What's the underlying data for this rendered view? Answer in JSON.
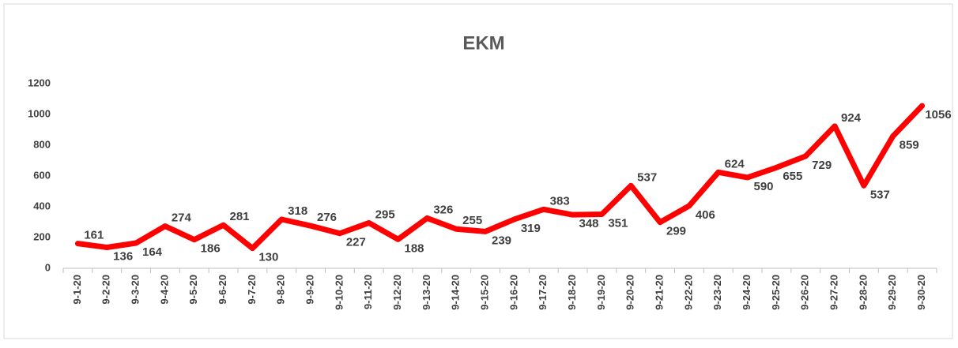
{
  "chart_data": {
    "type": "line",
    "title": "EKM",
    "categories": [
      "9-1-20",
      "9-2-20",
      "9-3-20",
      "9-4-20",
      "9-5-20",
      "9-6-20",
      "9-7-20",
      "9-8-20",
      "9-9-20",
      "9-10-20",
      "9-11-20",
      "9-12-20",
      "9-13-20",
      "9-14-20",
      "9-15-20",
      "9-16-20",
      "9-17-20",
      "9-18-20",
      "9-19-20",
      "9-20-20",
      "9-21-20",
      "9-22-20",
      "9-23-20",
      "9-24-20",
      "9-25-20",
      "9-26-20",
      "9-27-20",
      "9-28-20",
      "9-29-20",
      "9-30-20"
    ],
    "series": [
      {
        "color": "#ff0000",
        "values": [
          161,
          136,
          164,
          274,
          186,
          281,
          130,
          318,
          276,
          227,
          295,
          188,
          326,
          255,
          239,
          319,
          383,
          348,
          351,
          537,
          299,
          406,
          624,
          590,
          655,
          729,
          924,
          537,
          859,
          1056
        ]
      }
    ],
    "ylim": [
      0,
      1200
    ],
    "yticks": [
      0,
      200,
      400,
      600,
      800,
      1000,
      1200
    ],
    "grid": false
  }
}
